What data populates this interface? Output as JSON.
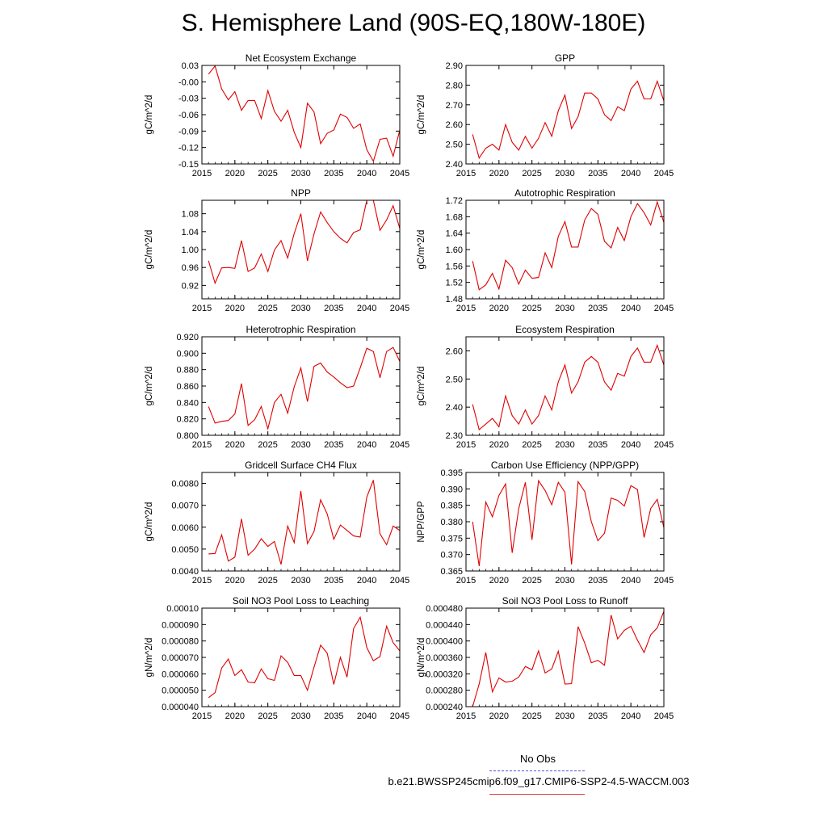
{
  "title": "S. Hemisphere Land (90S-EQ,180W-180E)",
  "legend": {
    "obs_label": "No Obs",
    "run_label": "b.e21.BWSSP245cmip6.f09_g17.CMIP6-SSP2-4.5-WACCM.003",
    "obs_color": "#5050e0",
    "run_color": "#e00000"
  },
  "chart_data": [
    {
      "type": "line",
      "title": "Net Ecosystem Exchange",
      "xlabel": "",
      "ylabel": "gC/m^2/d",
      "xlim": [
        2015,
        2045
      ],
      "ylim": [
        -0.15,
        0.03
      ],
      "xticks": [
        2015,
        2020,
        2025,
        2030,
        2035,
        2040,
        2045
      ],
      "yticks": [
        0.03,
        -0.0,
        -0.03,
        -0.06,
        -0.09,
        -0.12,
        -0.15
      ],
      "ytick_labels": [
        "0.03",
        "-0.00",
        "-0.03",
        "-0.06",
        "-0.09",
        "-0.12",
        "-0.15"
      ],
      "x": [
        2016,
        2017,
        2018,
        2019,
        2020,
        2021,
        2022,
        2023,
        2024,
        2025,
        2026,
        2027,
        2028,
        2029,
        2030,
        2031,
        2032,
        2033,
        2034,
        2035,
        2036,
        2037,
        2038,
        2039,
        2040,
        2041,
        2042,
        2043,
        2044,
        2045
      ],
      "values": [
        0.014,
        0.029,
        -0.013,
        -0.033,
        -0.018,
        -0.052,
        -0.034,
        -0.034,
        -0.067,
        -0.016,
        -0.054,
        -0.072,
        -0.052,
        -0.092,
        -0.12,
        -0.039,
        -0.055,
        -0.113,
        -0.094,
        -0.088,
        -0.059,
        -0.065,
        -0.085,
        -0.077,
        -0.124,
        -0.145,
        -0.105,
        -0.103,
        -0.136,
        -0.088
      ]
    },
    {
      "type": "line",
      "title": "GPP",
      "xlabel": "",
      "ylabel": "gC/m^2/d",
      "xlim": [
        2015,
        2045
      ],
      "ylim": [
        2.4,
        2.9
      ],
      "xticks": [
        2015,
        2020,
        2025,
        2030,
        2035,
        2040,
        2045
      ],
      "yticks": [
        2.9,
        2.8,
        2.7,
        2.6,
        2.5,
        2.4
      ],
      "ytick_labels": [
        "2.90",
        "2.80",
        "2.70",
        "2.60",
        "2.50",
        "2.40"
      ],
      "x": [
        2016,
        2017,
        2018,
        2019,
        2020,
        2021,
        2022,
        2023,
        2024,
        2025,
        2026,
        2027,
        2028,
        2029,
        2030,
        2031,
        2032,
        2033,
        2034,
        2035,
        2036,
        2037,
        2038,
        2039,
        2040,
        2041,
        2042,
        2043,
        2044,
        2045
      ],
      "values": [
        2.55,
        2.43,
        2.48,
        2.5,
        2.47,
        2.6,
        2.51,
        2.47,
        2.54,
        2.48,
        2.53,
        2.61,
        2.54,
        2.67,
        2.75,
        2.58,
        2.64,
        2.76,
        2.76,
        2.73,
        2.65,
        2.62,
        2.69,
        2.67,
        2.78,
        2.82,
        2.73,
        2.73,
        2.82,
        2.72
      ]
    },
    {
      "type": "line",
      "title": "NPP",
      "xlabel": "",
      "ylabel": "gC/m^2/d",
      "xlim": [
        2015,
        2045
      ],
      "ylim": [
        0.89,
        1.11
      ],
      "xticks": [
        2015,
        2020,
        2025,
        2030,
        2035,
        2040,
        2045
      ],
      "yticks": [
        1.08,
        1.04,
        1.0,
        0.96,
        0.92
      ],
      "ytick_labels": [
        "1.08",
        "1.04",
        "1.00",
        "0.96",
        "0.92"
      ],
      "x": [
        2016,
        2017,
        2018,
        2019,
        2020,
        2021,
        2022,
        2023,
        2024,
        2025,
        2026,
        2027,
        2028,
        2029,
        2030,
        2031,
        2032,
        2033,
        2034,
        2035,
        2036,
        2037,
        2038,
        2039,
        2040,
        2041,
        2042,
        2043,
        2044,
        2045
      ],
      "values": [
        0.975,
        0.925,
        0.959,
        0.96,
        0.958,
        1.02,
        0.951,
        0.959,
        0.99,
        0.951,
        0.999,
        1.02,
        0.981,
        1.036,
        1.08,
        0.975,
        1.035,
        1.084,
        1.06,
        1.04,
        1.025,
        1.015,
        1.038,
        1.044,
        1.11,
        1.11,
        1.043,
        1.066,
        1.098,
        1.047
      ]
    },
    {
      "type": "line",
      "title": "Autotrophic Respiration",
      "xlabel": "",
      "ylabel": "gC/m^2/d",
      "xlim": [
        2015,
        2045
      ],
      "ylim": [
        1.48,
        1.72
      ],
      "xticks": [
        2015,
        2020,
        2025,
        2030,
        2035,
        2040,
        2045
      ],
      "yticks": [
        1.72,
        1.68,
        1.64,
        1.6,
        1.56,
        1.52,
        1.48
      ],
      "ytick_labels": [
        "1.72",
        "1.68",
        "1.64",
        "1.60",
        "1.56",
        "1.52",
        "1.48"
      ],
      "x": [
        2016,
        2017,
        2018,
        2019,
        2020,
        2021,
        2022,
        2023,
        2024,
        2025,
        2026,
        2027,
        2028,
        2029,
        2030,
        2031,
        2032,
        2033,
        2034,
        2035,
        2036,
        2037,
        2038,
        2039,
        2040,
        2041,
        2042,
        2043,
        2044,
        2045
      ],
      "values": [
        1.572,
        1.502,
        1.514,
        1.542,
        1.504,
        1.574,
        1.556,
        1.516,
        1.55,
        1.53,
        1.532,
        1.592,
        1.556,
        1.632,
        1.668,
        1.606,
        1.606,
        1.672,
        1.7,
        1.686,
        1.62,
        1.604,
        1.654,
        1.622,
        1.68,
        1.712,
        1.69,
        1.66,
        1.716,
        1.666
      ]
    },
    {
      "type": "line",
      "title": "Heterotrophic Respiration",
      "xlabel": "",
      "ylabel": "gC/m^2/d",
      "xlim": [
        2015,
        2045
      ],
      "ylim": [
        0.8,
        0.92
      ],
      "xticks": [
        2015,
        2020,
        2025,
        2030,
        2035,
        2040,
        2045
      ],
      "yticks": [
        0.92,
        0.9,
        0.88,
        0.86,
        0.84,
        0.82,
        0.8
      ],
      "ytick_labels": [
        "0.920",
        "0.900",
        "0.880",
        "0.860",
        "0.840",
        "0.820",
        "0.800"
      ],
      "x": [
        2016,
        2017,
        2018,
        2019,
        2020,
        2021,
        2022,
        2023,
        2024,
        2025,
        2026,
        2027,
        2028,
        2029,
        2030,
        2031,
        2032,
        2033,
        2034,
        2035,
        2036,
        2037,
        2038,
        2039,
        2040,
        2041,
        2042,
        2043,
        2044,
        2045
      ],
      "values": [
        0.835,
        0.815,
        0.817,
        0.818,
        0.826,
        0.863,
        0.812,
        0.819,
        0.835,
        0.808,
        0.84,
        0.85,
        0.827,
        0.859,
        0.882,
        0.841,
        0.884,
        0.888,
        0.877,
        0.871,
        0.864,
        0.858,
        0.86,
        0.882,
        0.906,
        0.902,
        0.87,
        0.902,
        0.907,
        0.89
      ]
    },
    {
      "type": "line",
      "title": "Ecosystem Respiration",
      "xlabel": "",
      "ylabel": "gC/m^2/d",
      "xlim": [
        2015,
        2045
      ],
      "ylim": [
        2.3,
        2.65
      ],
      "xticks": [
        2015,
        2020,
        2025,
        2030,
        2035,
        2040,
        2045
      ],
      "yticks": [
        2.6,
        2.5,
        2.4,
        2.3
      ],
      "ytick_labels": [
        "2.60",
        "2.50",
        "2.40",
        "2.30"
      ],
      "x": [
        2016,
        2017,
        2018,
        2019,
        2020,
        2021,
        2022,
        2023,
        2024,
        2025,
        2026,
        2027,
        2028,
        2029,
        2030,
        2031,
        2032,
        2033,
        2034,
        2035,
        2036,
        2037,
        2038,
        2039,
        2040,
        2041,
        2042,
        2043,
        2044,
        2045
      ],
      "values": [
        2.41,
        2.32,
        2.34,
        2.36,
        2.33,
        2.44,
        2.37,
        2.34,
        2.39,
        2.34,
        2.37,
        2.44,
        2.39,
        2.49,
        2.55,
        2.45,
        2.49,
        2.56,
        2.58,
        2.56,
        2.49,
        2.46,
        2.52,
        2.51,
        2.58,
        2.61,
        2.56,
        2.56,
        2.62,
        2.55
      ]
    },
    {
      "type": "line",
      "title": "Gridcell Surface CH4 Flux",
      "xlabel": "",
      "ylabel": "gC/m^2/d",
      "xlim": [
        2015,
        2045
      ],
      "ylim": [
        0.004,
        0.0085
      ],
      "xticks": [
        2015,
        2020,
        2025,
        2030,
        2035,
        2040,
        2045
      ],
      "yticks": [
        0.008,
        0.007,
        0.006,
        0.005,
        0.004
      ],
      "ytick_labels": [
        "0.0080",
        "0.0070",
        "0.0060",
        "0.0050",
        "0.0040"
      ],
      "x": [
        2016,
        2017,
        2018,
        2019,
        2020,
        2021,
        2022,
        2023,
        2024,
        2025,
        2026,
        2027,
        2028,
        2029,
        2030,
        2031,
        2032,
        2033,
        2034,
        2035,
        2036,
        2037,
        2038,
        2039,
        2040,
        2041,
        2042,
        2043,
        2044,
        2045
      ],
      "values": [
        0.00478,
        0.0048,
        0.00565,
        0.00445,
        0.00463,
        0.00638,
        0.00472,
        0.005,
        0.00547,
        0.00512,
        0.00535,
        0.0043,
        0.00605,
        0.0053,
        0.00765,
        0.00525,
        0.0058,
        0.00725,
        0.0066,
        0.00545,
        0.0061,
        0.00585,
        0.0056,
        0.00555,
        0.00738,
        0.00815,
        0.0057,
        0.0052,
        0.00605,
        0.00585
      ]
    },
    {
      "type": "line",
      "title": "Carbon Use Efficiency (NPP/GPP)",
      "xlabel": "",
      "ylabel": "NPP/GPP",
      "xlim": [
        2015,
        2045
      ],
      "ylim": [
        0.365,
        0.395
      ],
      "xticks": [
        2015,
        2020,
        2025,
        2030,
        2035,
        2040,
        2045
      ],
      "yticks": [
        0.395,
        0.39,
        0.385,
        0.38,
        0.375,
        0.37,
        0.365
      ],
      "ytick_labels": [
        "0.395",
        "0.390",
        "0.385",
        "0.380",
        "0.375",
        "0.370",
        "0.365"
      ],
      "x": [
        2016,
        2017,
        2018,
        2019,
        2020,
        2021,
        2022,
        2023,
        2024,
        2025,
        2026,
        2027,
        2028,
        2029,
        2030,
        2031,
        2032,
        2033,
        2034,
        2035,
        2036,
        2037,
        2038,
        2039,
        2040,
        2041,
        2042,
        2043,
        2044,
        2045
      ],
      "values": [
        0.38,
        0.3665,
        0.386,
        0.3815,
        0.388,
        0.3915,
        0.3705,
        0.384,
        0.392,
        0.3745,
        0.3925,
        0.3895,
        0.3852,
        0.392,
        0.389,
        0.367,
        0.3922,
        0.3892,
        0.38,
        0.3742,
        0.3765,
        0.3872,
        0.3865,
        0.3848,
        0.391,
        0.3898,
        0.3752,
        0.384,
        0.3868,
        0.3782
      ]
    },
    {
      "type": "line",
      "title": "Soil NO3 Pool Loss to Leaching",
      "xlabel": "",
      "ylabel": "gN/m^2/d",
      "xlim": [
        2015,
        2045
      ],
      "ylim": [
        4e-05,
        0.0001
      ],
      "xticks": [
        2015,
        2020,
        2025,
        2030,
        2035,
        2040,
        2045
      ],
      "yticks": [
        0.0001,
        9e-05,
        8e-05,
        7e-05,
        6e-05,
        5e-05,
        4e-05
      ],
      "ytick_labels": [
        "0.00010",
        "0.000090",
        "0.000080",
        "0.000070",
        "0.000060",
        "0.000050",
        "0.000040"
      ],
      "x": [
        2016,
        2017,
        2018,
        2019,
        2020,
        2021,
        2022,
        2023,
        2024,
        2025,
        2026,
        2027,
        2028,
        2029,
        2030,
        2031,
        2032,
        2033,
        2034,
        2035,
        2036,
        2037,
        2038,
        2039,
        2040,
        2041,
        2042,
        2043,
        2044,
        2045
      ],
      "values": [
        4.55e-05,
        4.85e-05,
        6.35e-05,
        6.9e-05,
        5.9e-05,
        6.25e-05,
        5.5e-05,
        5.45e-05,
        6.3e-05,
        5.7e-05,
        5.6e-05,
        7.1e-05,
        6.7e-05,
        5.9e-05,
        5.9e-05,
        5e-05,
        6.4e-05,
        7.75e-05,
        7.25e-05,
        5.35e-05,
        7e-05,
        5.8e-05,
        8.75e-05,
        9.45e-05,
        7.6e-05,
        6.8e-05,
        7.05e-05,
        8.9e-05,
        7.9e-05,
        7.4e-05
      ]
    },
    {
      "type": "line",
      "title": "Soil NO3 Pool Loss to Runoff",
      "xlabel": "",
      "ylabel": "gN/m^2/d",
      "xlim": [
        2015,
        2045
      ],
      "ylim": [
        0.00024,
        0.00048
      ],
      "xticks": [
        2015,
        2020,
        2025,
        2030,
        2035,
        2040,
        2045
      ],
      "yticks": [
        0.00048,
        0.00044,
        0.0004,
        0.00036,
        0.00032,
        0.00028,
        0.00024
      ],
      "ytick_labels": [
        "0.000480",
        "0.000440",
        "0.000400",
        "0.000360",
        "0.000320",
        "0.000280",
        "0.000240"
      ],
      "x": [
        2016,
        2017,
        2018,
        2019,
        2020,
        2021,
        2022,
        2023,
        2024,
        2025,
        2026,
        2027,
        2028,
        2029,
        2030,
        2031,
        2032,
        2033,
        2034,
        2035,
        2036,
        2037,
        2038,
        2039,
        2040,
        2041,
        2042,
        2043,
        2044,
        2045
      ],
      "values": [
        0.00024,
        0.000295,
        0.000372,
        0.000276,
        0.00031,
        0.0003,
        0.000302,
        0.000312,
        0.000338,
        0.00033,
        0.000376,
        0.000322,
        0.000332,
        0.000375,
        0.000295,
        0.000296,
        0.000435,
        0.000395,
        0.000347,
        0.000353,
        0.000341,
        0.000463,
        0.000405,
        0.000426,
        0.000436,
        0.000402,
        0.000372,
        0.000415,
        0.000432,
        0.000472
      ]
    }
  ]
}
